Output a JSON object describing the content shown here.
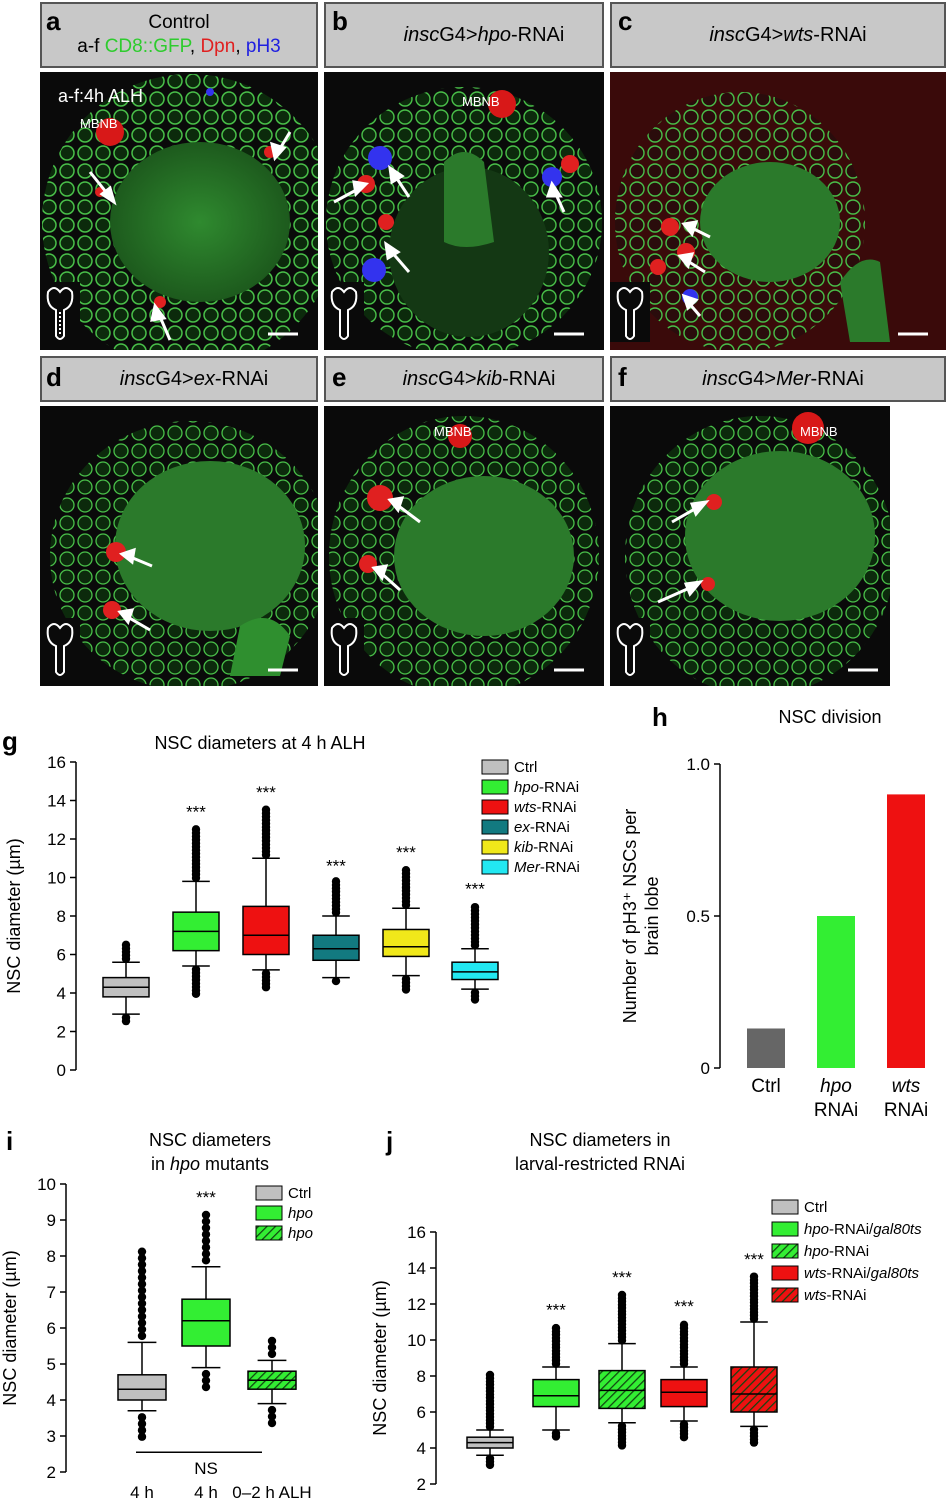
{
  "panels": {
    "a": {
      "letter": "a",
      "title_line1": "Control",
      "title_prefix": "a-f ",
      "cd8": "CD8::GFP",
      "sep1": ", ",
      "dpn": "Dpn",
      "sep2": ", ",
      "ph3": "pH3",
      "timepoint": "a-f:4h ALH",
      "mbnb": "MBNB"
    },
    "b": {
      "letter": "b",
      "gene_driver": "insc",
      "driver_suffix": "G4>",
      "gene": "hpo",
      "suffix": "-RNAi",
      "mbnb": "MBNB"
    },
    "c": {
      "letter": "c",
      "gene_driver": "insc",
      "driver_suffix": "G4>",
      "gene": "wts",
      "suffix": "-RNAi"
    },
    "d": {
      "letter": "d",
      "gene_driver": "insc",
      "driver_suffix": "G4>",
      "gene": "ex",
      "suffix": "-RNAi"
    },
    "e": {
      "letter": "e",
      "gene_driver": "insc",
      "driver_suffix": "G4>",
      "gene": "kib",
      "suffix": "-RNAi",
      "mbnb": "MBNB"
    },
    "f": {
      "letter": "f",
      "gene_driver": "insc",
      "driver_suffix": "G4>",
      "gene": "Mer",
      "suffix": "-RNAi",
      "mbnb": "MBNB"
    }
  },
  "colors": {
    "gfp": "#3cd23c",
    "dpn": "#e02020",
    "ph3": "#2020e0"
  },
  "chart_data": [
    {
      "panel": "g",
      "type": "box",
      "title": "NSC diameters at 4 h ALH",
      "ylabel": "NSC diameter (µm)",
      "ylim": [
        0,
        16
      ],
      "yticks": [
        0,
        2,
        4,
        6,
        8,
        10,
        12,
        14,
        16
      ],
      "series": [
        {
          "name": "Ctrl",
          "italic": "",
          "rest": "Ctrl",
          "color": "#c0c0c0",
          "q1": 3.8,
          "median": 4.3,
          "q3": 4.8,
          "whisk_lo": 2.9,
          "whisk_hi": 5.6,
          "out_lo": 2.4,
          "out_hi": 6.5,
          "sig": ""
        },
        {
          "name": "hpo-RNAi",
          "italic": "hpo",
          "rest": "-RNAi",
          "color": "#33ee33",
          "q1": 6.2,
          "median": 7.2,
          "q3": 8.2,
          "whisk_lo": 5.4,
          "whisk_hi": 9.8,
          "out_lo": 3.9,
          "out_hi": 12.6,
          "sig": "***"
        },
        {
          "name": "wts-RNAi",
          "italic": "wts",
          "rest": "-RNAi",
          "color": "#ee1111",
          "q1": 6.0,
          "median": 7.0,
          "q3": 8.5,
          "whisk_lo": 5.2,
          "whisk_hi": 11.0,
          "out_lo": 4.2,
          "out_hi": 13.6,
          "sig": "***"
        },
        {
          "name": "ex-RNAi",
          "italic": "ex",
          "rest": "-RNAi",
          "color": "#127a80",
          "q1": 5.7,
          "median": 6.3,
          "q3": 7.0,
          "whisk_lo": 4.8,
          "whisk_hi": 8.0,
          "out_lo": 4.5,
          "out_hi": 9.8,
          "sig": "***"
        },
        {
          "name": "kib-RNAi",
          "italic": "kib",
          "rest": "-RNAi",
          "color": "#f0e81a",
          "q1": 5.9,
          "median": 6.4,
          "q3": 7.3,
          "whisk_lo": 4.9,
          "whisk_hi": 8.4,
          "out_lo": 4.1,
          "out_hi": 10.5,
          "sig": "***"
        },
        {
          "name": "Mer-RNAi",
          "italic": "Mer",
          "rest": "-RNAi",
          "color": "#22e8f2",
          "q1": 4.7,
          "median": 5.1,
          "q3": 5.6,
          "whisk_lo": 4.2,
          "whisk_hi": 6.3,
          "out_lo": 3.6,
          "out_hi": 8.6,
          "sig": "***"
        }
      ],
      "legend": "top-right"
    },
    {
      "panel": "h",
      "type": "bar",
      "title": "NSC division",
      "ylabel": "Number of pH3⁺ NSCs per brain lobe",
      "ylim": [
        0,
        1.0
      ],
      "yticks": [
        0,
        0.5,
        1.0
      ],
      "ytick_labels": [
        "0",
        "0.5",
        "1.0"
      ],
      "categories": [
        {
          "line1": "Ctrl",
          "line1_italic": false,
          "line2": ""
        },
        {
          "line1": "hpo",
          "line1_italic": true,
          "line2": "RNAi"
        },
        {
          "line1": "wts",
          "line1_italic": true,
          "line2": "RNAi"
        }
      ],
      "values": [
        0.13,
        0.5,
        0.9
      ],
      "colors": [
        "#666666",
        "#33ee33",
        "#ee1111"
      ]
    },
    {
      "panel": "i",
      "type": "box",
      "title_line1": "NSC diameters",
      "title_line2_pre": "in ",
      "title_line2_it": "hpo",
      "title_line2_post": " mutants",
      "ylabel": "NSC diameter (µm)",
      "ylim": [
        2,
        10
      ],
      "yticks": [
        2,
        3,
        4,
        5,
        6,
        7,
        8,
        9,
        10
      ],
      "x_labels": [
        "4 h",
        "4 h",
        "0–2 h ALH"
      ],
      "bracket_label": "NS",
      "series": [
        {
          "name": "Ctrl",
          "italic": "",
          "rest": "Ctrl",
          "color": "#c0c0c0",
          "hatch": false,
          "q1": 4.0,
          "median": 4.3,
          "q3": 4.7,
          "whisk_lo": 3.7,
          "whisk_hi": 5.6,
          "out_lo": 2.9,
          "out_hi": 8.2,
          "sig": ""
        },
        {
          "name": "hpo",
          "italic": "hpo",
          "rest": "",
          "color": "#33ee33",
          "hatch": false,
          "q1": 5.5,
          "median": 6.2,
          "q3": 6.8,
          "whisk_lo": 4.9,
          "whisk_hi": 7.7,
          "out_lo": 4.2,
          "out_hi": 9.2,
          "sig": "***"
        },
        {
          "name": "hpo",
          "italic": "hpo",
          "rest": "",
          "color": "#33ee33",
          "hatch": true,
          "q1": 4.3,
          "median": 4.55,
          "q3": 4.8,
          "whisk_lo": 3.9,
          "whisk_hi": 5.1,
          "out_lo": 3.3,
          "out_hi": 5.8,
          "sig": ""
        }
      ]
    },
    {
      "panel": "j",
      "type": "box",
      "title_line1": "NSC diameters in",
      "title_line2": "larval-restricted RNAi",
      "ylabel": "NSC diameter (µm)",
      "ylim": [
        2,
        16
      ],
      "yticks": [
        2,
        4,
        6,
        8,
        10,
        12,
        14,
        16
      ],
      "series": [
        {
          "name": "Ctrl",
          "it1": "",
          "mid": "Ctrl",
          "it2": "",
          "color": "#c0c0c0",
          "hatch": false,
          "q1": 4.0,
          "median": 4.3,
          "q3": 4.6,
          "whisk_lo": 3.6,
          "whisk_hi": 5.0,
          "out_lo": 2.9,
          "out_hi": 8.2,
          "sig": ""
        },
        {
          "name": "hpo-RNAi/gal80ts",
          "it1": "hpo",
          "mid": "-RNAi/",
          "it2": "gal80ts",
          "color": "#33ee33",
          "hatch": false,
          "q1": 6.3,
          "median": 6.9,
          "q3": 7.8,
          "whisk_lo": 5.0,
          "whisk_hi": 8.5,
          "out_lo": 4.6,
          "out_hi": 10.8,
          "sig": "***"
        },
        {
          "name": "hpo-RNAi",
          "it1": "hpo",
          "mid": "-RNAi",
          "it2": "",
          "color": "#33ee33",
          "hatch": true,
          "q1": 6.2,
          "median": 7.2,
          "q3": 8.3,
          "whisk_lo": 5.4,
          "whisk_hi": 9.8,
          "out_lo": 4.0,
          "out_hi": 12.6,
          "sig": "***"
        },
        {
          "name": "wts-RNAi/gal80ts",
          "it1": "wts",
          "mid": "-RNAi/",
          "it2": "gal80ts",
          "color": "#ee1111",
          "hatch": false,
          "q1": 6.3,
          "median": 7.1,
          "q3": 7.8,
          "whisk_lo": 5.5,
          "whisk_hi": 8.5,
          "out_lo": 4.6,
          "out_hi": 11.0,
          "sig": "***"
        },
        {
          "name": "wts-RNAi",
          "it1": "wts",
          "mid": "-RNAi",
          "it2": "",
          "color": "#ee1111",
          "hatch": true,
          "q1": 6.0,
          "median": 7.0,
          "q3": 8.5,
          "whisk_lo": 5.2,
          "whisk_hi": 11.0,
          "out_lo": 4.2,
          "out_hi": 13.6,
          "sig": "***"
        }
      ],
      "legend": "right"
    }
  ],
  "letters": {
    "g": "g",
    "h": "h",
    "i": "i",
    "j": "j"
  }
}
